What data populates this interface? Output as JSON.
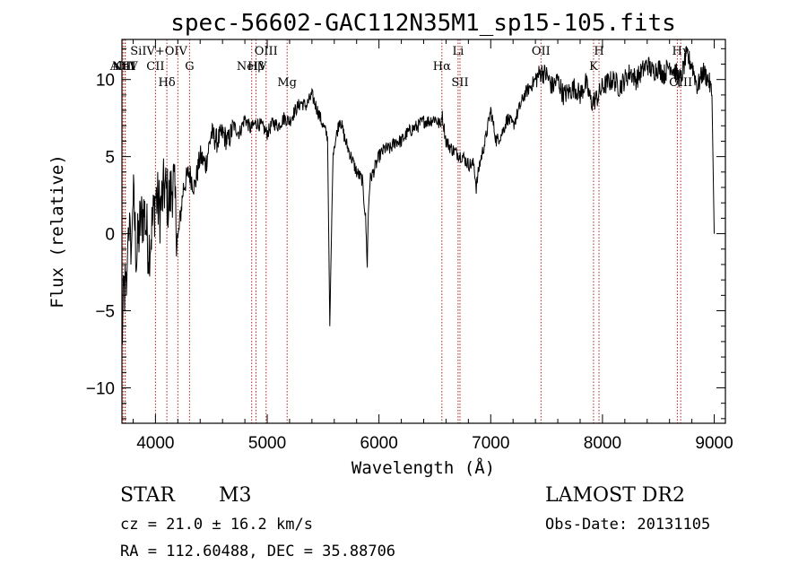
{
  "chart_data": {
    "type": "line",
    "title": "spec-56602-GAC112N35M1_sp15-105.fits",
    "xlabel": "Wavelength (Å)",
    "ylabel": "Flux (relative)",
    "xlim": [
      3700,
      9100
    ],
    "ylim": [
      -12.3,
      12.6
    ],
    "xticks": [
      4000,
      5000,
      6000,
      7000,
      8000,
      9000
    ],
    "yticks": [
      -10,
      -5,
      0,
      5,
      10
    ],
    "line_color": "#000000",
    "marker_color": "#b22222",
    "series": [
      {
        "x": [
          3700,
          3720,
          3740,
          3760,
          3780,
          3800,
          3830,
          3860,
          3900,
          3940,
          3980,
          4000,
          4040,
          4080,
          4120,
          4160,
          4200,
          4250,
          4300,
          4350,
          4400,
          4450,
          4500,
          4550,
          4600,
          4650,
          4700,
          4750,
          4800,
          4850,
          4900,
          4950,
          5000,
          5050,
          5100,
          5150,
          5200,
          5250,
          5300,
          5350,
          5400,
          5450,
          5500,
          5540,
          5560,
          5575,
          5590,
          5610,
          5650,
          5700,
          5750,
          5800,
          5850,
          5880,
          5895,
          5905,
          5920,
          5950,
          6000,
          6050,
          6100,
          6150,
          6200,
          6250,
          6300,
          6350,
          6400,
          6450,
          6500,
          6550,
          6563,
          6600,
          6650,
          6700,
          6750,
          6800,
          6850,
          6870,
          6880,
          6900,
          6950,
          7000,
          7050,
          7100,
          7150,
          7200,
          7250,
          7300,
          7350,
          7400,
          7450,
          7500,
          7550,
          7600,
          7650,
          7700,
          7750,
          7800,
          7850,
          7900,
          7950,
          8000,
          8050,
          8100,
          8150,
          8200,
          8250,
          8300,
          8350,
          8400,
          8450,
          8500,
          8550,
          8600,
          8650,
          8700,
          8750,
          8800,
          8850,
          8900,
          8950,
          8980,
          9000
        ],
        "y": [
          -7.0,
          -3.5,
          -4.0,
          1.5,
          -2.0,
          2.5,
          -1.5,
          0.5,
          1.5,
          -1.0,
          1.0,
          2.5,
          1.5,
          3.0,
          2.0,
          3.5,
          -0.5,
          3.0,
          4.0,
          3.0,
          5.0,
          4.5,
          6.5,
          6.0,
          6.5,
          6.0,
          7.0,
          6.5,
          7.5,
          6.8,
          7.2,
          7.0,
          6.5,
          7.2,
          7.0,
          7.5,
          7.3,
          8.0,
          8.5,
          8.3,
          9.0,
          8.0,
          7.0,
          6.3,
          -6.0,
          0.0,
          5.5,
          6.0,
          7.5,
          6.0,
          5.0,
          4.0,
          3.5,
          1.0,
          -2.0,
          1.5,
          3.5,
          4.0,
          5.0,
          5.5,
          5.5,
          6.0,
          6.0,
          6.5,
          6.8,
          7.0,
          7.3,
          7.3,
          7.5,
          7.0,
          7.8,
          6.0,
          5.5,
          5.2,
          5.0,
          4.5,
          4.5,
          3.0,
          3.5,
          4.5,
          6.0,
          8.0,
          6.0,
          6.5,
          7.5,
          7.0,
          8.0,
          9.0,
          9.5,
          10.0,
          10.5,
          10.3,
          9.5,
          10.0,
          9.0,
          9.2,
          9.5,
          9.0,
          9.8,
          8.5,
          8.8,
          9.5,
          9.8,
          10.0,
          9.5,
          10.0,
          10.5,
          10.0,
          10.5,
          11.0,
          10.5,
          10.8,
          10.3,
          11.0,
          10.5,
          10.0,
          11.5,
          11.0,
          9.5,
          10.5,
          10.0,
          9.0,
          0.0
        ]
      }
    ],
    "line_markers": [
      {
        "label": "AlIII",
        "x": 3710,
        "row": 1
      },
      {
        "label": "NeV",
        "x": 3727,
        "row": 1
      },
      {
        "label": "OII",
        "x": 3730,
        "row": 1
      },
      {
        "label": "SiIV+OIV",
        "x": 4030,
        "row": 0
      },
      {
        "label": "CII",
        "x": 4000,
        "row": 1
      },
      {
        "label": "Hδ",
        "x": 4102,
        "row": 2
      },
      {
        "label": "G",
        "x": 4305,
        "row": 1
      },
      {
        "label": "OIII",
        "x": 4990,
        "row": 0
      },
      {
        "label": "NeIV",
        "x": 4861,
        "row": 1
      },
      {
        "label": "Hβ",
        "x": 4900,
        "row": 1
      },
      {
        "label": "Mg",
        "x": 5178,
        "row": 2
      },
      {
        "label": "Li",
        "x": 6708,
        "row": 0
      },
      {
        "label": "Hα",
        "x": 6563,
        "row": 1
      },
      {
        "label": "SII",
        "x": 6725,
        "row": 2
      },
      {
        "label": "OII",
        "x": 7450,
        "row": 0
      },
      {
        "label": "H",
        "x": 7969,
        "row": 0
      },
      {
        "label": "K",
        "x": 7920,
        "row": 1
      },
      {
        "label": "Hγ",
        "x": 8699,
        "row": 0
      },
      {
        "label": "OIII",
        "x": 8700,
        "row": 2
      }
    ],
    "marker_lines_x": [
      3710,
      3727,
      3730,
      4000,
      4102,
      4200,
      4305,
      4861,
      4900,
      4990,
      5178,
      6563,
      6708,
      6725,
      7450,
      7920,
      7969,
      8670,
      8700
    ]
  },
  "info": {
    "object_class": "STAR",
    "subclass": "M3",
    "survey": "LAMOST DR2",
    "cz": "cz = 21.0 ± 16.2 km/s",
    "obs_date": "Obs-Date: 20131105",
    "radec": "RA = 112.60488, DEC =  35.88706"
  }
}
